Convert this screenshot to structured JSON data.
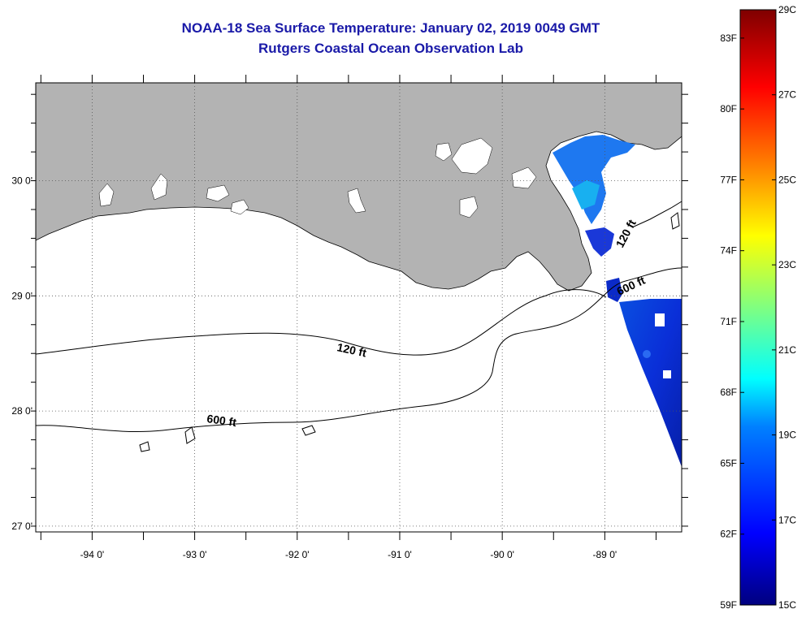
{
  "title": "NOAA-18 Sea Surface Temperature:  January 02, 2019 0049 GMT",
  "subtitle": "Rutgers Coastal Ocean Observation Lab",
  "map": {
    "lon_range": [
      -94.55,
      -88.25
    ],
    "lat_range": [
      26.95,
      30.85
    ],
    "lon_ticks": [
      -94,
      -93,
      -92,
      -91,
      -90,
      -89
    ],
    "lon_tick_labels": [
      "-94 0'",
      "-93 0'",
      "-92 0'",
      "-91 0'",
      "-90 0'",
      "-89 0'"
    ],
    "lat_ticks": [
      30,
      29,
      28,
      27
    ],
    "lat_tick_labels": [
      "30 0'",
      "29 0'",
      "28 0'",
      "27 0'"
    ],
    "grid": "dotted",
    "land_color": "#b3b3b3",
    "contour_labels": [
      "120 ft",
      "600 ft",
      "120 ft",
      "600 ft"
    ]
  },
  "colorbar": {
    "min_c": 15,
    "max_c": 29,
    "celsius_labels": [
      "29C",
      "27C",
      "25C",
      "23C",
      "21C",
      "19C",
      "17C",
      "15C"
    ],
    "fahrenheit_labels": [
      "83F",
      "80F",
      "77F",
      "74F",
      "71F",
      "68F",
      "65F",
      "62F",
      "59F"
    ]
  }
}
